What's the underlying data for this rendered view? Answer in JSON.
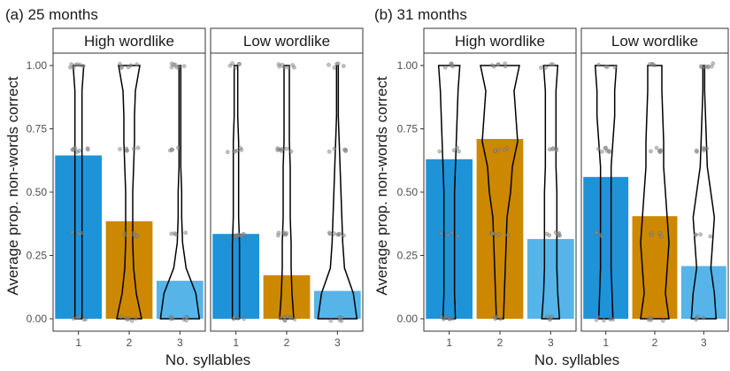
{
  "colors": {
    "syllable_1": "#1f93d8",
    "syllable_2": "#cc8800",
    "syllable_3": "#56b4e9",
    "panel_border": "#333333",
    "strip_fill": "#ffffff",
    "violin_stroke": "#000000",
    "point_fill": "#8c8c8c"
  },
  "chart_data": [
    {
      "type": "bar",
      "title": "(a) 25 months",
      "xlabel": "No. syllables",
      "ylabel": "Average prop. non-words correct",
      "ylim": [
        0,
        1
      ],
      "y_ticks": [
        "0.00",
        "0.25",
        "0.50",
        "0.75",
        "1.00"
      ],
      "categories": [
        "1",
        "2",
        "3"
      ],
      "overlay": [
        "violin",
        "jittered points"
      ],
      "facets": [
        {
          "name": "High wordlike",
          "values": [
            0.645,
            0.385,
            0.15
          ]
        },
        {
          "name": "Low wordlike",
          "values": [
            0.335,
            0.172,
            0.11
          ]
        }
      ]
    },
    {
      "type": "bar",
      "title": "(b) 31 months",
      "xlabel": "No. syllables",
      "ylabel": "Average prop. non-words correct",
      "ylim": [
        0,
        1
      ],
      "y_ticks": [
        "0.00",
        "0.25",
        "0.50",
        "0.75",
        "1.00"
      ],
      "categories": [
        "1",
        "2",
        "3"
      ],
      "overlay": [
        "violin",
        "jittered points"
      ],
      "facets": [
        {
          "name": "High wordlike",
          "values": [
            0.63,
            0.71,
            0.315
          ]
        },
        {
          "name": "Low wordlike",
          "values": [
            0.56,
            0.405,
            0.208
          ]
        }
      ]
    }
  ]
}
